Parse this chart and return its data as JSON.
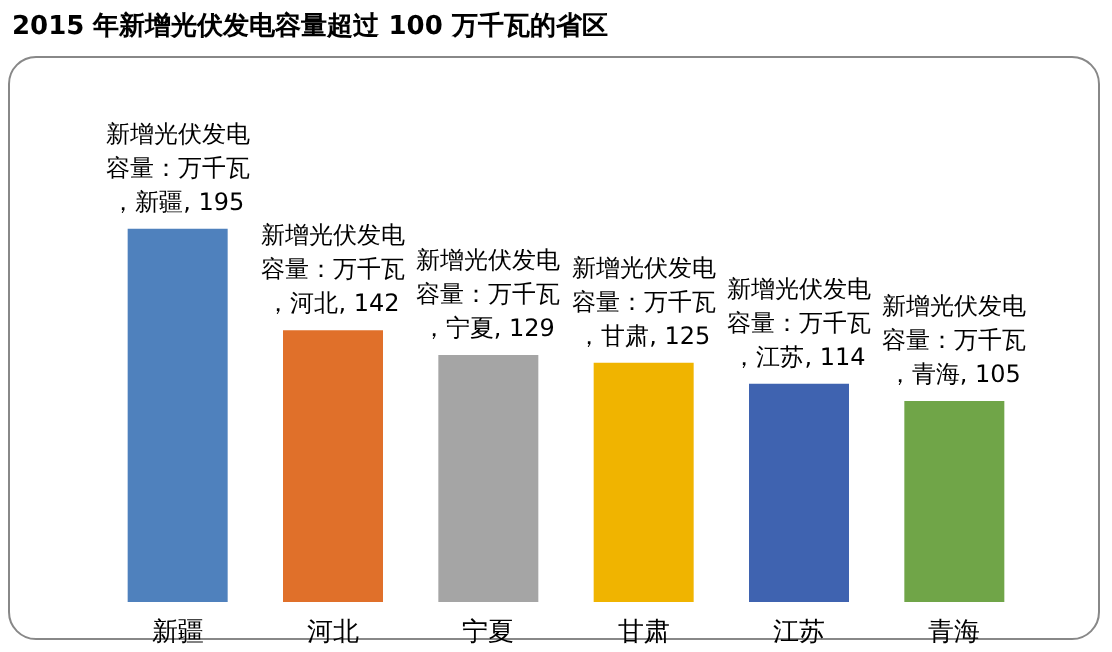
{
  "chart_data": {
    "type": "bar",
    "title": "2015 年新增光伏发电容量超过 100 万千瓦的省区",
    "categories": [
      "新疆",
      "河北",
      "宁夏",
      "甘肃",
      "江苏",
      "青海"
    ],
    "values": [
      195,
      142,
      129,
      125,
      114,
      105
    ],
    "colors": [
      "#4f81bd",
      "#e0702a",
      "#a5a5a5",
      "#f0b400",
      "#3f63b0",
      "#70a548"
    ],
    "value_labels": [
      "新增光伏发电容量：万千瓦，新疆, 195",
      "新增光伏发电容量：万千瓦，河北, 142",
      "新增光伏发电容量：万千瓦，宁夏, 129",
      "新增光伏发电容量：万千瓦，甘肃, 125",
      "新增光伏发电容量：万千瓦，江苏, 114",
      "新增光伏发电容量：万千瓦，青海, 105"
    ],
    "tick_labels": "x"
  }
}
